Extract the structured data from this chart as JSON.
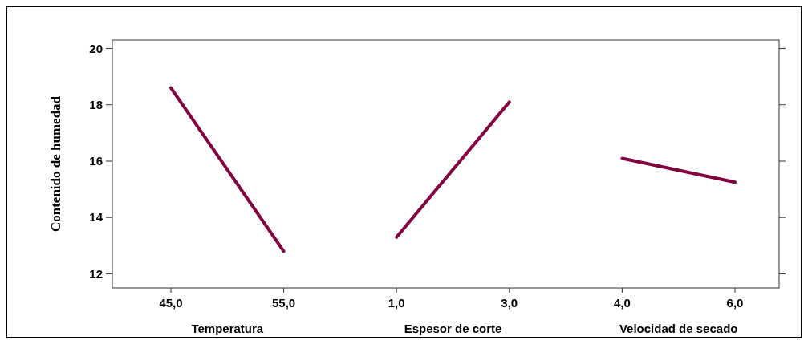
{
  "chart_data": {
    "type": "line",
    "ylabel": "Contenido de humedad",
    "categories": [
      "45,0",
      "55,0",
      "1,0",
      "3,0",
      "4,0",
      "6,0"
    ],
    "series": [
      {
        "color": "#800040",
        "values": [
          18.6,
          12.8,
          null,
          null,
          null,
          null
        ]
      },
      {
        "color": "#800040",
        "values": [
          null,
          null,
          13.3,
          18.1,
          null,
          null
        ]
      },
      {
        "color": "#800040",
        "values": [
          null,
          null,
          null,
          null,
          16.1,
          15.25
        ]
      }
    ],
    "annotations": [
      "Temperatura",
      "Espesor de corte",
      "Velocidad de secado"
    ],
    "ylim": [
      11.5,
      20.3
    ],
    "yticks": [
      12,
      14,
      16,
      18,
      20
    ],
    "grid": false,
    "marker": "none",
    "line_style": "solid"
  }
}
